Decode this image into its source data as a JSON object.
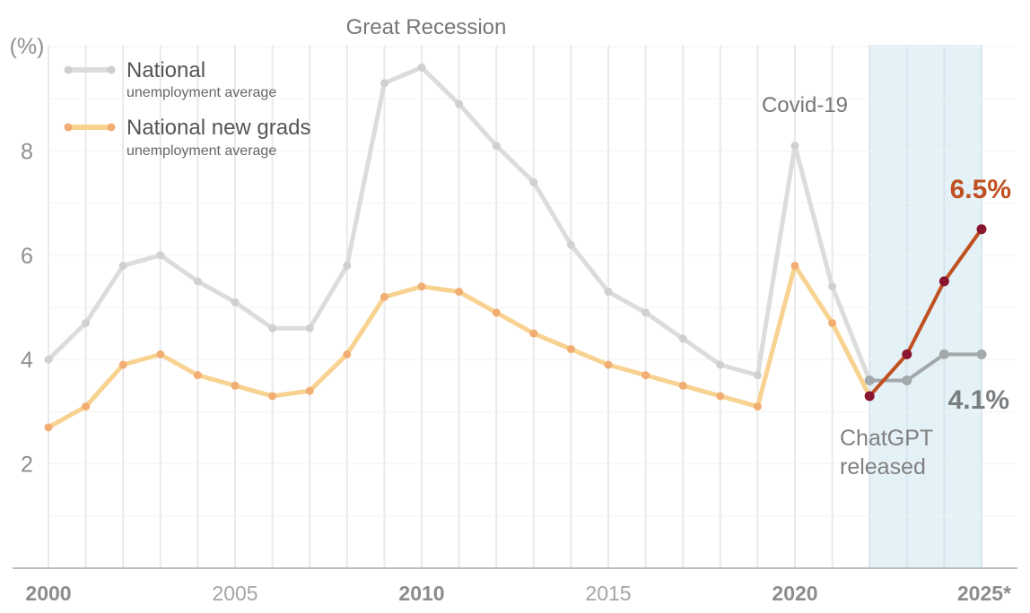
{
  "chart_data": {
    "type": "line",
    "unit_label": "(%)",
    "ylim": [
      0,
      10
    ],
    "y_ticks": [
      2,
      4,
      6,
      8
    ],
    "y_tick_labels": [
      "2",
      "4",
      "6",
      "8"
    ],
    "x_tick_labels": [
      {
        "year": 2000,
        "label": "2000",
        "bold": true
      },
      {
        "year": 2005,
        "label": "2005",
        "bold": false
      },
      {
        "year": 2010,
        "label": "2010",
        "bold": true
      },
      {
        "year": 2015,
        "label": "2015",
        "bold": false
      },
      {
        "year": 2020,
        "label": "2020",
        "bold": true
      },
      {
        "year": 2025,
        "label": "2025*",
        "bold": true
      }
    ],
    "years": [
      2000,
      2001,
      2002,
      2003,
      2004,
      2005,
      2006,
      2007,
      2008,
      2009,
      2010,
      2011,
      2012,
      2013,
      2014,
      2015,
      2016,
      2017,
      2018,
      2019,
      2020,
      2021,
      2022,
      2023,
      2024,
      2025
    ],
    "series": [
      {
        "name": "National",
        "sublabel": "unemployment average",
        "color": "#dcdcdc",
        "point_color": "#d0d0d0",
        "highlight_color": "#a3a9ab",
        "highlight_from_year": 2022,
        "values": [
          4.0,
          4.7,
          5.8,
          6.0,
          5.5,
          5.1,
          4.6,
          4.6,
          5.8,
          9.3,
          9.6,
          8.9,
          8.1,
          7.4,
          6.2,
          5.3,
          4.9,
          4.4,
          3.9,
          3.7,
          8.1,
          5.4,
          3.6,
          3.6,
          4.1,
          4.1
        ]
      },
      {
        "name": "National new grads",
        "sublabel": "unemployment average",
        "color": "#f8d290",
        "point_color": "#f2ae72",
        "highlight_color": "#c0501f",
        "highlight_point_color": "#8a1530",
        "highlight_from_year": 2022,
        "values": [
          2.7,
          3.1,
          3.9,
          4.1,
          3.7,
          3.5,
          3.3,
          3.4,
          4.1,
          5.2,
          5.4,
          5.3,
          4.9,
          4.5,
          4.2,
          3.9,
          3.7,
          3.5,
          3.3,
          3.1,
          5.8,
          4.7,
          3.3,
          4.1,
          5.5,
          6.5
        ]
      }
    ],
    "shaded_region": {
      "from_year": 2022,
      "to_year": 2025,
      "color": "#e4f1f7"
    },
    "annotations": [
      {
        "text": "Great Recession",
        "year": 2010
      },
      {
        "text": "Covid-19",
        "year": 2020
      },
      {
        "text": "ChatGPT",
        "year": 2022
      },
      {
        "text": "released",
        "year": 2022
      }
    ],
    "end_labels": [
      {
        "text": "6.5%",
        "series": "National new grads",
        "value": 6.5,
        "color": "#c0501f"
      },
      {
        "text": "4.1%",
        "series": "National",
        "value": 4.1,
        "color": "#7a7e80"
      }
    ],
    "legend_position": "top-left"
  }
}
